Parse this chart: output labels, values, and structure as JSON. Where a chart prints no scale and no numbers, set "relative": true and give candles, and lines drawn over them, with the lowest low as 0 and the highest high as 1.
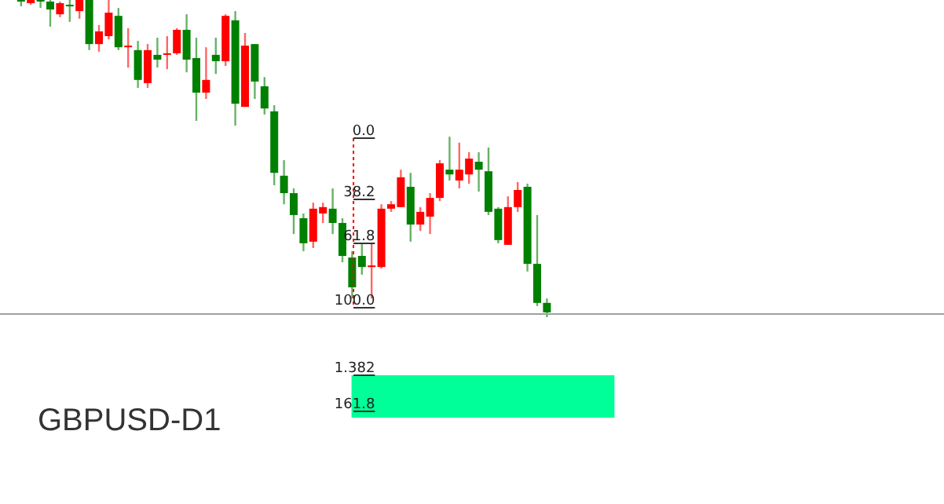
{
  "chart_data": {
    "type": "candlestick",
    "title": "GBPUSD-D1",
    "relative": true,
    "categories": [
      null,
      null,
      null,
      null,
      null,
      null,
      null,
      null,
      null,
      null,
      null,
      null,
      null,
      null,
      null,
      null,
      null,
      null,
      null,
      null,
      null,
      null,
      null,
      null,
      null,
      null,
      null,
      null,
      null,
      null,
      null,
      null,
      null,
      null,
      null,
      null,
      null,
      null,
      null,
      null,
      null,
      null,
      null,
      null,
      null,
      null,
      null,
      null,
      null,
      null,
      null,
      null,
      null,
      null,
      null
    ],
    "ohlc": [
      [
        1,
        1,
        0.98,
        0.995
      ],
      [
        0.99,
        1,
        0.985,
        1
      ],
      [
        1,
        1,
        0.975,
        0.995
      ],
      [
        0.995,
        1,
        0.916,
        0.97
      ],
      [
        0.955,
        0.995,
        0.946,
        0.99
      ],
      [
        0.985,
        1,
        0.931,
        0.98
      ],
      [
        0.965,
        1,
        0.941,
        1
      ],
      [
        1,
        1,
        0.842,
        0.861
      ],
      [
        0.861,
        0.921,
        0.837,
        0.901
      ],
      [
        0.886,
        1,
        0.876,
        0.96
      ],
      [
        0.95,
        0.975,
        0.842,
        0.851
      ],
      [
        0.851,
        0.911,
        0.787,
        0.856
      ],
      [
        0.842,
        0.871,
        0.723,
        0.748
      ],
      [
        0.738,
        0.861,
        0.723,
        0.842
      ],
      [
        0.827,
        0.881,
        0.787,
        0.812
      ],
      [
        0.827,
        0.886,
        0.782,
        0.832
      ],
      [
        0.832,
        0.911,
        0.827,
        0.906
      ],
      [
        0.906,
        0.955,
        0.772,
        0.812
      ],
      [
        0.817,
        0.881,
        0.619,
        0.708
      ],
      [
        0.708,
        0.851,
        0.688,
        0.748
      ],
      [
        0.827,
        0.881,
        0.767,
        0.807
      ],
      [
        0.807,
        0.955,
        0.792,
        0.95
      ],
      [
        0.936,
        0.965,
        0.604,
        0.673
      ],
      [
        0.663,
        0.896,
        0.663,
        0.856
      ],
      [
        0.861,
        0.861,
        0.688,
        0.743
      ],
      [
        0.728,
        0.757,
        0.639,
        0.658
      ],
      [
        0.649,
        0.668,
        0.416,
        0.455
      ],
      [
        0.446,
        0.495,
        0.356,
        0.391
      ],
      [
        0.391,
        0.406,
        0.262,
        0.322
      ],
      [
        0.312,
        0.327,
        0.208,
        0.233
      ],
      [
        0.238,
        0.361,
        0.218,
        0.342
      ],
      [
        0.327,
        0.361,
        0.297,
        0.347
      ],
      [
        0.342,
        0.406,
        0.262,
        0.297
      ],
      [
        0.297,
        0.312,
        0.173,
        0.193
      ],
      [
        0.188,
        0.208,
        0.059,
        0.094
      ],
      [
        0.193,
        0.233,
        0.134,
        0.158
      ],
      [
        0.158,
        0.233,
        0.059,
        0.163
      ],
      [
        0.158,
        0.356,
        0.153,
        0.342
      ],
      [
        0.342,
        0.366,
        0.332,
        0.356
      ],
      [
        0.347,
        0.465,
        0.347,
        0.441
      ],
      [
        0.411,
        0.455,
        0.238,
        0.292
      ],
      [
        0.292,
        0.347,
        0.272,
        0.332
      ],
      [
        0.317,
        0.391,
        0.262,
        0.376
      ],
      [
        0.376,
        0.495,
        0.366,
        0.485
      ],
      [
        0.465,
        0.569,
        0.431,
        0.45
      ],
      [
        0.431,
        0.55,
        0.406,
        0.465
      ],
      [
        0.45,
        0.52,
        0.421,
        0.5
      ],
      [
        0.49,
        0.52,
        0.396,
        0.465
      ],
      [
        0.46,
        0.535,
        0.322,
        0.332
      ],
      [
        0.342,
        0.347,
        0.233,
        0.243
      ],
      [
        0.228,
        0.381,
        0.228,
        0.347
      ],
      [
        0.347,
        0.426,
        0.332,
        0.401
      ],
      [
        0.411,
        0.421,
        0.144,
        0.168
      ],
      [
        0.168,
        0.322,
        0.035,
        0.045
      ],
      [
        0.045,
        0.059,
        0,
        0.015
      ]
    ],
    "colors": [
      "#008000",
      "#ff0000",
      "#008000",
      "#008000",
      "#ff0000",
      "#008000",
      "#ff0000",
      "#008000",
      "#ff0000",
      "#ff0000",
      "#008000",
      "#ff0000",
      "#008000",
      "#ff0000",
      "#008000",
      "#ff0000",
      "#ff0000",
      "#008000",
      "#008000",
      "#ff0000",
      "#008000",
      "#ff0000",
      "#008000",
      "#ff0000",
      "#008000",
      "#008000",
      "#008000",
      "#008000",
      "#008000",
      "#008000",
      "#ff0000",
      "#ff0000",
      "#008000",
      "#008000",
      "#008000",
      "#008000",
      "#ff0000",
      "#ff0000",
      "#ff0000",
      "#ff0000",
      "#008000",
      "#ff0000",
      "#ff0000",
      "#ff0000",
      "#008000",
      "#ff0000",
      "#ff0000",
      "#008000",
      "#008000",
      "#008000",
      "#ff0000",
      "#ff0000",
      "#008000",
      "#008000",
      "#008000"
    ],
    "ref_lines": [
      {
        "axis": "y",
        "value": 0.01,
        "color": "#a0a0a0"
      }
    ],
    "bands": [
      {
        "axis": "y",
        "from": -0.183,
        "to": -0.317,
        "color": "#00ff99"
      }
    ],
    "annotations": [
      "0.0",
      "38.2",
      "61.8",
      "100.0",
      "1.382",
      "161.8"
    ]
  }
}
